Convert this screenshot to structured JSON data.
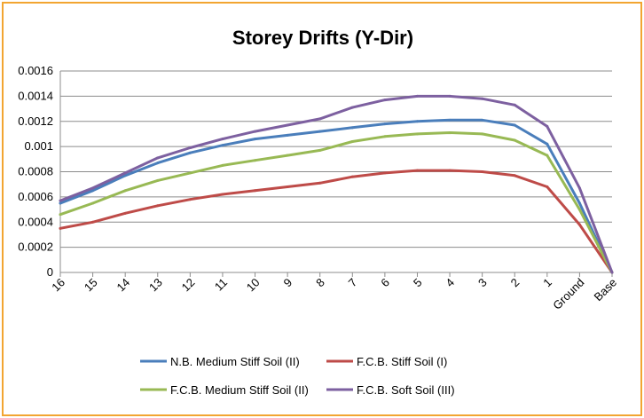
{
  "chart_data": {
    "type": "line",
    "title": "Storey Drifts (Y-Dir)",
    "xlabel": "",
    "ylabel": "",
    "categories": [
      "16",
      "15",
      "14",
      "13",
      "12",
      "11",
      "10",
      "9",
      "8",
      "7",
      "6",
      "5",
      "4",
      "3",
      "2",
      "1",
      "Ground",
      "Base"
    ],
    "ylim": [
      0,
      0.0016
    ],
    "yticks": [
      "0",
      "0.0002",
      "0.0004",
      "0.0006",
      "0.0008",
      "0.001",
      "0.0012",
      "0.0014",
      "0.0016"
    ],
    "grid": "horizontal",
    "legend_position": "bottom",
    "series": [
      {
        "name": "N.B. Medium Stiff Soil (II)",
        "color": "#4a7ebb",
        "values": [
          0.00055,
          0.00065,
          0.00077,
          0.00087,
          0.00095,
          0.00101,
          0.00106,
          0.00109,
          0.00112,
          0.00115,
          0.00118,
          0.0012,
          0.00121,
          0.00121,
          0.00117,
          0.00102,
          0.00055,
          0.0
        ]
      },
      {
        "name": "F.C.B. Stiff Soil (I)",
        "color": "#be4b48",
        "values": [
          0.00035,
          0.0004,
          0.00047,
          0.00053,
          0.00058,
          0.00062,
          0.00065,
          0.00068,
          0.00071,
          0.00076,
          0.00079,
          0.00081,
          0.00081,
          0.0008,
          0.00077,
          0.00068,
          0.00038,
          0.0
        ]
      },
      {
        "name": "F.C.B. Medium Stiff Soil (II)",
        "color": "#98b954",
        "values": [
          0.00046,
          0.00055,
          0.00065,
          0.00073,
          0.00079,
          0.00085,
          0.00089,
          0.00093,
          0.00097,
          0.00104,
          0.00108,
          0.0011,
          0.00111,
          0.0011,
          0.00105,
          0.00093,
          0.0005,
          0.0
        ]
      },
      {
        "name": "F.C.B. Soft Soil (III)",
        "color": "#7d60a0",
        "values": [
          0.00057,
          0.00067,
          0.00079,
          0.00091,
          0.00099,
          0.00106,
          0.00112,
          0.00117,
          0.00122,
          0.00131,
          0.00137,
          0.0014,
          0.0014,
          0.00138,
          0.00133,
          0.00116,
          0.00067,
          0.0
        ]
      }
    ]
  }
}
